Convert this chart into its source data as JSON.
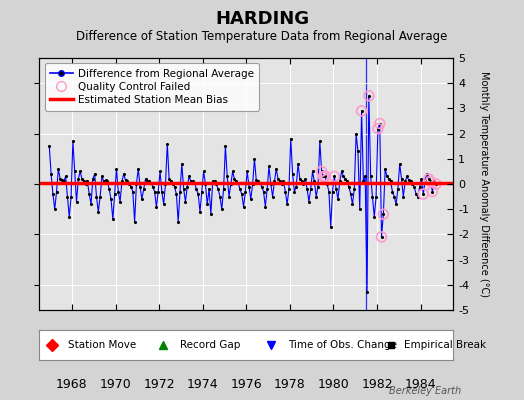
{
  "title": "HARDING",
  "subtitle": "Difference of Station Temperature Data from Regional Average",
  "ylabel": "Monthly Temperature Anomaly Difference (°C)",
  "xlabel_years": [
    1968,
    1970,
    1972,
    1974,
    1976,
    1978,
    1980,
    1982,
    1984
  ],
  "ylim": [
    -5,
    5
  ],
  "xlim": [
    1966.5,
    1985.5
  ],
  "bias_value": 0.05,
  "background_color": "#d4d4d4",
  "plot_bg_color": "#e4e4e4",
  "line_color": "#0000ff",
  "bias_color": "#ff0000",
  "qc_color": "#ff99cc",
  "dot_color": "#000000",
  "watermark": "Berkeley Earth",
  "time_obs_change_year": 1981.5,
  "series": [
    1966.958,
    1.5,
    1967.042,
    0.4,
    1967.125,
    -0.4,
    1967.208,
    -1.0,
    1967.292,
    -0.3,
    1967.375,
    0.6,
    1967.458,
    0.2,
    1967.542,
    0.15,
    1967.625,
    0.1,
    1967.708,
    0.3,
    1967.792,
    -0.5,
    1967.875,
    -1.3,
    1967.958,
    -0.5,
    1968.042,
    1.7,
    1968.125,
    0.5,
    1968.208,
    -0.7,
    1968.292,
    0.2,
    1968.375,
    0.5,
    1968.458,
    0.2,
    1968.542,
    0.1,
    1968.625,
    0.0,
    1968.708,
    0.1,
    1968.792,
    -0.4,
    1968.875,
    -0.8,
    1968.958,
    0.2,
    1969.042,
    0.4,
    1969.125,
    -0.5,
    1969.208,
    -1.1,
    1969.292,
    -0.5,
    1969.375,
    0.3,
    1969.458,
    0.1,
    1969.542,
    0.15,
    1969.625,
    0.1,
    1969.708,
    -0.2,
    1969.792,
    -0.6,
    1969.875,
    -1.4,
    1969.958,
    -0.4,
    1970.042,
    0.6,
    1970.125,
    -0.3,
    1970.208,
    -0.7,
    1970.292,
    0.1,
    1970.375,
    0.4,
    1970.458,
    0.15,
    1970.542,
    0.1,
    1970.625,
    0.0,
    1970.708,
    -0.1,
    1970.792,
    -0.3,
    1970.875,
    -1.5,
    1970.958,
    0.0,
    1971.042,
    0.6,
    1971.125,
    -0.1,
    1971.208,
    -0.6,
    1971.292,
    -0.2,
    1971.375,
    0.2,
    1971.458,
    0.1,
    1971.542,
    0.1,
    1971.625,
    0.05,
    1971.708,
    -0.1,
    1971.792,
    -0.3,
    1971.875,
    -0.9,
    1971.958,
    -0.3,
    1972.042,
    0.5,
    1972.125,
    -0.3,
    1972.208,
    -0.8,
    1972.292,
    0.0,
    1972.375,
    1.6,
    1972.458,
    0.2,
    1972.542,
    0.1,
    1972.625,
    0.0,
    1972.708,
    -0.1,
    1972.792,
    -0.4,
    1972.875,
    -1.5,
    1972.958,
    -0.3,
    1973.042,
    0.8,
    1973.125,
    -0.2,
    1973.208,
    -0.7,
    1973.292,
    -0.1,
    1973.375,
    0.3,
    1973.458,
    0.1,
    1973.542,
    0.1,
    1973.625,
    0.05,
    1973.708,
    -0.2,
    1973.792,
    -0.4,
    1973.875,
    -1.1,
    1973.958,
    -0.3,
    1974.042,
    0.5,
    1974.125,
    0.0,
    1974.208,
    -0.8,
    1974.292,
    -0.2,
    1974.375,
    -1.2,
    1974.458,
    0.1,
    1974.542,
    0.1,
    1974.625,
    0.0,
    1974.708,
    -0.2,
    1974.792,
    -0.5,
    1974.875,
    -1.0,
    1974.958,
    -0.2,
    1975.042,
    1.5,
    1975.125,
    0.3,
    1975.208,
    -0.5,
    1975.292,
    0.0,
    1975.375,
    0.5,
    1975.458,
    0.2,
    1975.542,
    0.1,
    1975.625,
    0.05,
    1975.708,
    -0.2,
    1975.792,
    -0.4,
    1975.875,
    -0.9,
    1975.958,
    -0.3,
    1976.042,
    0.5,
    1976.125,
    -0.1,
    1976.208,
    -0.6,
    1976.292,
    0.0,
    1976.375,
    1.0,
    1976.458,
    0.15,
    1976.542,
    0.1,
    1976.625,
    0.05,
    1976.708,
    -0.1,
    1976.792,
    -0.3,
    1976.875,
    -0.9,
    1976.958,
    -0.2,
    1977.042,
    0.7,
    1977.125,
    0.0,
    1977.208,
    -0.5,
    1977.292,
    0.1,
    1977.375,
    0.6,
    1977.458,
    0.2,
    1977.542,
    0.1,
    1977.625,
    0.0,
    1977.708,
    0.1,
    1977.792,
    -0.3,
    1977.875,
    -0.8,
    1977.958,
    -0.2,
    1978.042,
    1.8,
    1978.125,
    0.4,
    1978.208,
    -0.3,
    1978.292,
    -0.1,
    1978.375,
    0.8,
    1978.458,
    0.2,
    1978.542,
    0.1,
    1978.625,
    0.0,
    1978.708,
    0.2,
    1978.792,
    -0.2,
    1978.875,
    -0.7,
    1978.958,
    -0.2,
    1979.042,
    0.5,
    1979.125,
    0.1,
    1979.208,
    -0.5,
    1979.292,
    -0.1,
    1979.375,
    1.7,
    1979.458,
    0.5,
    1979.542,
    0.3,
    1979.625,
    0.3,
    1979.708,
    0.0,
    1979.792,
    -0.3,
    1979.875,
    -1.7,
    1979.958,
    -0.3,
    1980.042,
    0.3,
    1980.125,
    -0.2,
    1980.208,
    -0.6,
    1980.292,
    0.1,
    1980.375,
    0.5,
    1980.458,
    0.3,
    1980.542,
    0.2,
    1980.625,
    0.1,
    1980.708,
    -0.1,
    1980.792,
    -0.4,
    1980.875,
    -0.8,
    1980.958,
    -0.2,
    1981.042,
    2.0,
    1981.125,
    1.3,
    1981.208,
    -1.0,
    1981.292,
    2.9,
    1981.375,
    0.1,
    1981.458,
    0.3,
    1981.542,
    -4.3,
    1981.625,
    3.5,
    1981.708,
    0.3,
    1981.792,
    -0.5,
    1981.875,
    -1.3,
    1981.958,
    -0.5,
    1982.042,
    2.2,
    1982.125,
    2.4,
    1982.208,
    -2.1,
    1982.292,
    -1.2,
    1982.375,
    0.6,
    1982.458,
    0.3,
    1982.542,
    0.2,
    1982.625,
    0.1,
    1982.708,
    -0.3,
    1982.792,
    -0.5,
    1982.875,
    -0.8,
    1982.958,
    -0.2,
    1983.042,
    0.8,
    1983.125,
    0.2,
    1983.208,
    -0.5,
    1983.292,
    0.1,
    1983.375,
    0.3,
    1983.458,
    0.15,
    1983.542,
    0.1,
    1983.625,
    0.0,
    1983.708,
    -0.1,
    1983.792,
    -0.4,
    1983.875,
    -0.5,
    1983.958,
    -0.1,
    1984.042,
    0.2,
    1984.125,
    -0.4,
    1984.208,
    0.15,
    1984.292,
    0.4,
    1984.375,
    0.2,
    1984.458,
    0.1,
    1984.542,
    -0.3,
    1984.625,
    0.1,
    1984.708,
    0.0
  ],
  "qc_failed_points": [
    [
      1979.458,
      0.5
    ],
    [
      1979.542,
      0.3
    ],
    [
      1979.625,
      0.3
    ],
    [
      1980.042,
      0.3
    ],
    [
      1981.292,
      2.9
    ],
    [
      1981.625,
      3.5
    ],
    [
      1982.042,
      2.2
    ],
    [
      1982.125,
      2.4
    ],
    [
      1982.208,
      -2.1
    ],
    [
      1982.292,
      -1.2
    ],
    [
      1984.125,
      -0.4
    ],
    [
      1984.375,
      0.2
    ],
    [
      1984.458,
      0.1
    ],
    [
      1984.542,
      -0.3
    ],
    [
      1984.708,
      0.0
    ]
  ]
}
